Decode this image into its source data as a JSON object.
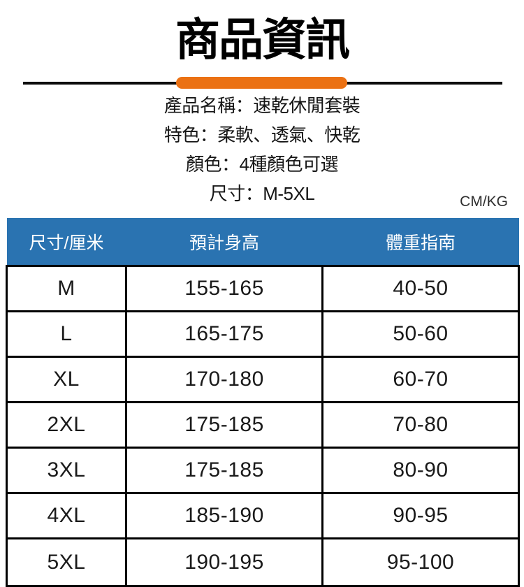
{
  "page": {
    "title": "商品資訊",
    "unit_label": "CM/KG"
  },
  "colors": {
    "accent_orange": "#eb7113",
    "table_header_blue": "#2a73b1",
    "table_border": "#000000",
    "background": "#ffffff"
  },
  "details": {
    "lines": [
      "產品名稱：速乾休閒套裝",
      "特色：柔軟、透氣、快乾",
      "顏色：4種顏色可選",
      "尺寸：M-5XL"
    ]
  },
  "size_table": {
    "headers": [
      "尺寸/厘米",
      "預計身高",
      "體重指南"
    ],
    "rows": [
      [
        "M",
        "155-165",
        "40-50"
      ],
      [
        "L",
        "165-175",
        "50-60"
      ],
      [
        "XL",
        "170-180",
        "60-70"
      ],
      [
        "2XL",
        "175-185",
        "70-80"
      ],
      [
        "3XL",
        "175-185",
        "80-90"
      ],
      [
        "4XL",
        "185-190",
        "90-95"
      ],
      [
        "5XL",
        "190-195",
        "95-100"
      ]
    ]
  }
}
